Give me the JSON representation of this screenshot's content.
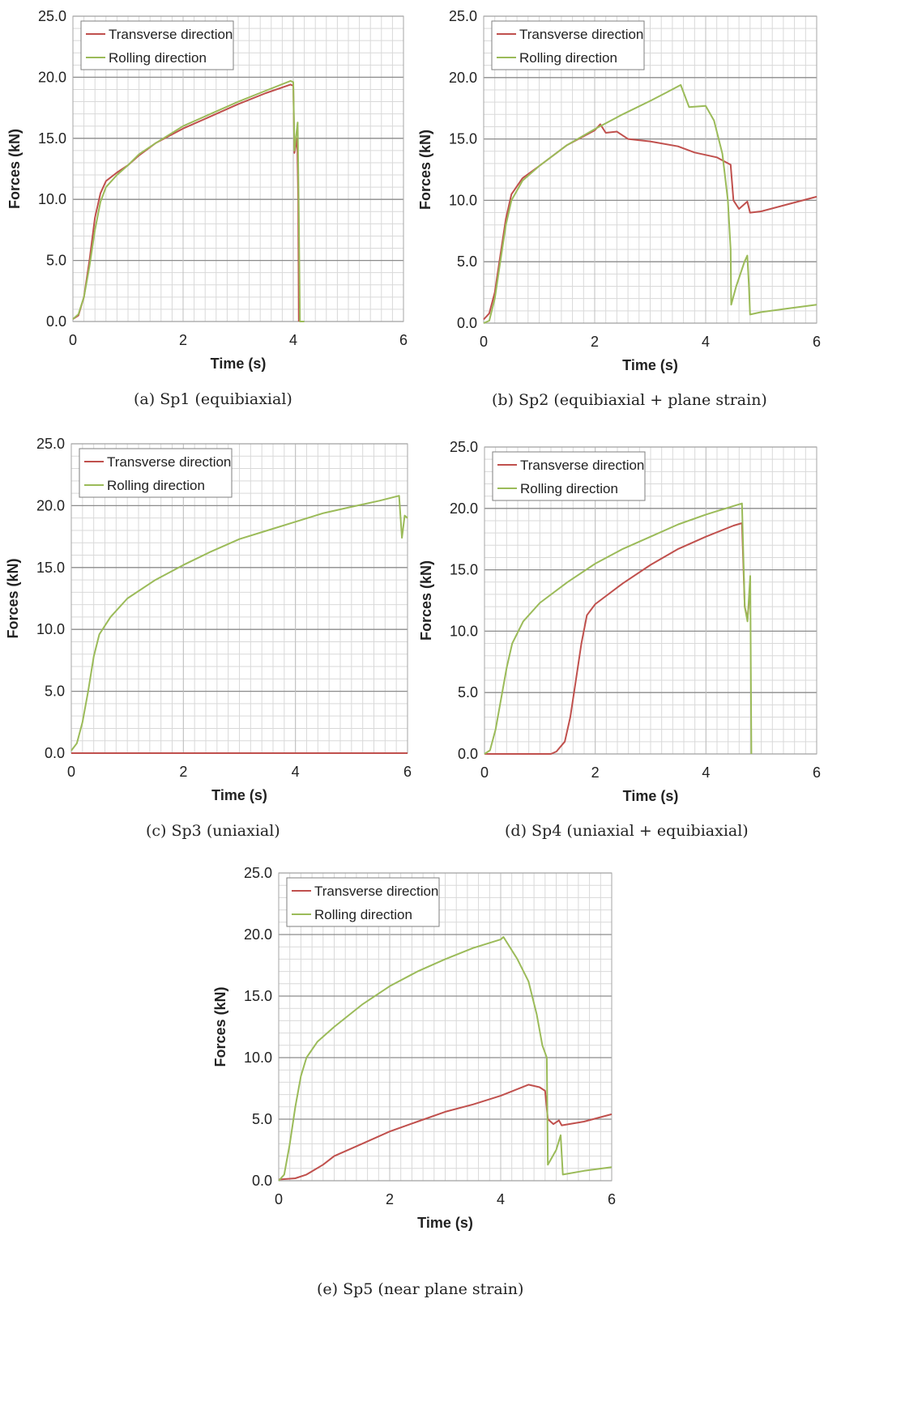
{
  "colors": {
    "transverse": "#c0504d",
    "rolling": "#9bbb59",
    "major_grid": "#8c8c8c",
    "minor_grid": "#d9d9d9"
  },
  "chart_data": [
    {
      "type": "line",
      "caption": "(a) Sp1 (equibiaxial)",
      "xlabel": "Time (s)",
      "ylabel": "Forces (kN)",
      "xlim": [
        0,
        6
      ],
      "ylim": [
        0,
        25
      ],
      "xticks": [
        "0",
        "2",
        "4",
        "6"
      ],
      "yticks": [
        "0.0",
        "5.0",
        "10.0",
        "15.0",
        "20.0",
        "25.0"
      ],
      "grid": true,
      "legend_position": "top-left",
      "series": [
        {
          "name": "Transverse direction",
          "color": "#c0504d",
          "points": [
            [
              0,
              0.2
            ],
            [
              0.1,
              0.5
            ],
            [
              0.2,
              2.0
            ],
            [
              0.3,
              5.0
            ],
            [
              0.4,
              8.5
            ],
            [
              0.5,
              10.5
            ],
            [
              0.6,
              11.5
            ],
            [
              0.8,
              12.2
            ],
            [
              1.0,
              12.8
            ],
            [
              1.2,
              13.6
            ],
            [
              1.5,
              14.6
            ],
            [
              2.0,
              15.8
            ],
            [
              2.5,
              16.8
            ],
            [
              3.0,
              17.8
            ],
            [
              3.5,
              18.7
            ],
            [
              3.95,
              19.4
            ],
            [
              4.0,
              19.3
            ],
            [
              4.02,
              13.8
            ],
            [
              4.07,
              15.0
            ],
            [
              4.09,
              10.0
            ],
            [
              4.1,
              0.0
            ]
          ]
        },
        {
          "name": "Rolling direction",
          "color": "#9bbb59",
          "points": [
            [
              0,
              0.2
            ],
            [
              0.1,
              0.6
            ],
            [
              0.2,
              2.0
            ],
            [
              0.3,
              4.5
            ],
            [
              0.4,
              7.5
            ],
            [
              0.5,
              9.8
            ],
            [
              0.6,
              11.0
            ],
            [
              0.8,
              12.0
            ],
            [
              1.0,
              12.8
            ],
            [
              1.2,
              13.7
            ],
            [
              1.5,
              14.6
            ],
            [
              2.0,
              16.0
            ],
            [
              2.5,
              17.0
            ],
            [
              3.0,
              18.0
            ],
            [
              3.5,
              18.9
            ],
            [
              3.95,
              19.7
            ],
            [
              4.0,
              19.6
            ],
            [
              4.02,
              14.0
            ],
            [
              4.08,
              16.3
            ],
            [
              4.1,
              9.0
            ],
            [
              4.12,
              0.0
            ],
            [
              4.2,
              0.0
            ]
          ]
        }
      ]
    },
    {
      "type": "line",
      "caption": "(b) Sp2 (equibiaxial + plane strain)",
      "xlabel": "Time (s)",
      "ylabel": "Forces (kN)",
      "xlim": [
        0,
        6
      ],
      "ylim": [
        0,
        25
      ],
      "xticks": [
        "0",
        "2",
        "4",
        "6"
      ],
      "yticks": [
        "0.0",
        "5.0",
        "10.0",
        "15.0",
        "20.0",
        "25.0"
      ],
      "grid": true,
      "legend_position": "top-left",
      "series": [
        {
          "name": "Transverse direction",
          "color": "#c0504d",
          "points": [
            [
              0,
              0.3
            ],
            [
              0.1,
              0.8
            ],
            [
              0.2,
              2.5
            ],
            [
              0.3,
              5.5
            ],
            [
              0.4,
              8.5
            ],
            [
              0.5,
              10.5
            ],
            [
              0.7,
              11.8
            ],
            [
              1.0,
              12.8
            ],
            [
              1.5,
              14.5
            ],
            [
              2.0,
              15.7
            ],
            [
              2.1,
              16.2
            ],
            [
              2.2,
              15.5
            ],
            [
              2.4,
              15.6
            ],
            [
              2.6,
              15.0
            ],
            [
              3.0,
              14.8
            ],
            [
              3.5,
              14.4
            ],
            [
              3.8,
              13.9
            ],
            [
              4.2,
              13.5
            ],
            [
              4.45,
              12.9
            ],
            [
              4.5,
              10.0
            ],
            [
              4.6,
              9.3
            ],
            [
              4.75,
              9.9
            ],
            [
              4.8,
              9.0
            ],
            [
              5.0,
              9.1
            ],
            [
              5.5,
              9.7
            ],
            [
              6.0,
              10.3
            ]
          ]
        },
        {
          "name": "Rolling direction",
          "color": "#9bbb59",
          "points": [
            [
              0,
              0.0
            ],
            [
              0.1,
              0.2
            ],
            [
              0.2,
              2.0
            ],
            [
              0.3,
              5.0
            ],
            [
              0.4,
              8.0
            ],
            [
              0.5,
              10.0
            ],
            [
              0.7,
              11.6
            ],
            [
              1.0,
              12.8
            ],
            [
              1.5,
              14.5
            ],
            [
              2.0,
              15.8
            ],
            [
              2.5,
              17.0
            ],
            [
              3.0,
              18.1
            ],
            [
              3.3,
              18.8
            ],
            [
              3.55,
              19.4
            ],
            [
              3.7,
              17.6
            ],
            [
              4.0,
              17.7
            ],
            [
              4.15,
              16.5
            ],
            [
              4.3,
              13.8
            ],
            [
              4.4,
              10.0
            ],
            [
              4.45,
              6.0
            ],
            [
              4.46,
              1.5
            ],
            [
              4.55,
              3.0
            ],
            [
              4.7,
              5.0
            ],
            [
              4.75,
              5.5
            ],
            [
              4.78,
              3.0
            ],
            [
              4.8,
              0.7
            ],
            [
              5.0,
              0.9
            ],
            [
              5.5,
              1.2
            ],
            [
              6.0,
              1.5
            ]
          ]
        }
      ]
    },
    {
      "type": "line",
      "caption": "(c) Sp3 (uniaxial)",
      "xlabel": "Time (s)",
      "ylabel": "Forces (kN)",
      "xlim": [
        0,
        6
      ],
      "ylim": [
        0,
        25
      ],
      "xticks": [
        "0",
        "2",
        "4",
        "6"
      ],
      "yticks": [
        "0.0",
        "5.0",
        "10.0",
        "15.0",
        "20.0",
        "25.0"
      ],
      "grid": true,
      "legend_position": "top-left",
      "series": [
        {
          "name": "Transverse direction",
          "color": "#c0504d",
          "points": [
            [
              0,
              0.0
            ],
            [
              6.0,
              0.0
            ]
          ]
        },
        {
          "name": "Rolling direction",
          "color": "#9bbb59",
          "points": [
            [
              0,
              0.2
            ],
            [
              0.1,
              0.8
            ],
            [
              0.2,
              2.5
            ],
            [
              0.3,
              5.0
            ],
            [
              0.4,
              7.8
            ],
            [
              0.5,
              9.6
            ],
            [
              0.7,
              11.0
            ],
            [
              1.0,
              12.5
            ],
            [
              1.5,
              14.0
            ],
            [
              2.0,
              15.2
            ],
            [
              2.5,
              16.3
            ],
            [
              3.0,
              17.3
            ],
            [
              3.5,
              18.0
            ],
            [
              4.0,
              18.7
            ],
            [
              4.5,
              19.4
            ],
            [
              5.0,
              19.9
            ],
            [
              5.5,
              20.4
            ],
            [
              5.85,
              20.8
            ],
            [
              5.9,
              17.4
            ],
            [
              5.95,
              19.2
            ],
            [
              6.0,
              19.0
            ]
          ]
        }
      ]
    },
    {
      "type": "line",
      "caption": "(d) Sp4 (uniaxial + equibiaxial)",
      "xlabel": "Time (s)",
      "ylabel": "Forces (kN)",
      "xlim": [
        0,
        6
      ],
      "ylim": [
        0,
        25
      ],
      "xticks": [
        "0",
        "2",
        "4",
        "6"
      ],
      "yticks": [
        "0.0",
        "5.0",
        "10.0",
        "15.0",
        "20.0",
        "25.0"
      ],
      "grid": true,
      "legend_position": "top-left",
      "series": [
        {
          "name": "Transverse direction",
          "color": "#c0504d",
          "points": [
            [
              0,
              0.0
            ],
            [
              1.2,
              0.0
            ],
            [
              1.3,
              0.2
            ],
            [
              1.45,
              1.0
            ],
            [
              1.55,
              3.0
            ],
            [
              1.65,
              6.0
            ],
            [
              1.75,
              9.0
            ],
            [
              1.85,
              11.3
            ],
            [
              2.0,
              12.2
            ],
            [
              2.5,
              13.9
            ],
            [
              3.0,
              15.4
            ],
            [
              3.5,
              16.7
            ],
            [
              4.0,
              17.7
            ],
            [
              4.5,
              18.6
            ],
            [
              4.65,
              18.8
            ],
            [
              4.7,
              12.0
            ],
            [
              4.75,
              11.0
            ],
            [
              4.8,
              13.5
            ]
          ]
        },
        {
          "name": "Rolling direction",
          "color": "#9bbb59",
          "points": [
            [
              0,
              0.0
            ],
            [
              0.1,
              0.3
            ],
            [
              0.2,
              2.0
            ],
            [
              0.3,
              4.5
            ],
            [
              0.4,
              7.0
            ],
            [
              0.5,
              9.0
            ],
            [
              0.7,
              10.8
            ],
            [
              1.0,
              12.3
            ],
            [
              1.5,
              14.0
            ],
            [
              2.0,
              15.5
            ],
            [
              2.5,
              16.7
            ],
            [
              3.0,
              17.7
            ],
            [
              3.5,
              18.7
            ],
            [
              4.0,
              19.5
            ],
            [
              4.5,
              20.2
            ],
            [
              4.65,
              20.4
            ],
            [
              4.7,
              12.0
            ],
            [
              4.75,
              10.8
            ],
            [
              4.8,
              14.5
            ],
            [
              4.82,
              0.0
            ]
          ]
        }
      ]
    },
    {
      "type": "line",
      "caption": "(e) Sp5 (near plane strain)",
      "xlabel": "Time (s)",
      "ylabel": "Forces (kN)",
      "xlim": [
        0,
        6
      ],
      "ylim": [
        0,
        25
      ],
      "xticks": [
        "0",
        "2",
        "4",
        "6"
      ],
      "yticks": [
        "0.0",
        "5.0",
        "10.0",
        "15.0",
        "20.0",
        "25.0"
      ],
      "grid": true,
      "legend_position": "top-left",
      "series": [
        {
          "name": "Transverse direction",
          "color": "#c0504d",
          "points": [
            [
              0,
              0.1
            ],
            [
              0.3,
              0.2
            ],
            [
              0.5,
              0.5
            ],
            [
              0.8,
              1.3
            ],
            [
              1.0,
              2.0
            ],
            [
              1.5,
              3.0
            ],
            [
              2.0,
              4.0
            ],
            [
              2.5,
              4.8
            ],
            [
              3.0,
              5.6
            ],
            [
              3.5,
              6.2
            ],
            [
              4.0,
              6.9
            ],
            [
              4.5,
              7.8
            ],
            [
              4.7,
              7.6
            ],
            [
              4.8,
              7.3
            ],
            [
              4.85,
              5.0
            ],
            [
              4.95,
              4.6
            ],
            [
              5.05,
              4.9
            ],
            [
              5.1,
              4.5
            ],
            [
              5.5,
              4.8
            ],
            [
              6.0,
              5.4
            ]
          ]
        },
        {
          "name": "Rolling direction",
          "color": "#9bbb59",
          "points": [
            [
              0,
              0.0
            ],
            [
              0.1,
              0.5
            ],
            [
              0.2,
              3.0
            ],
            [
              0.3,
              6.0
            ],
            [
              0.4,
              8.5
            ],
            [
              0.5,
              10.0
            ],
            [
              0.7,
              11.3
            ],
            [
              1.0,
              12.5
            ],
            [
              1.5,
              14.3
            ],
            [
              2.0,
              15.8
            ],
            [
              2.5,
              17.0
            ],
            [
              3.0,
              18.0
            ],
            [
              3.5,
              18.9
            ],
            [
              4.0,
              19.6
            ],
            [
              4.05,
              19.8
            ],
            [
              4.3,
              18.0
            ],
            [
              4.5,
              16.2
            ],
            [
              4.65,
              13.5
            ],
            [
              4.75,
              11.0
            ],
            [
              4.83,
              10.0
            ],
            [
              4.85,
              1.3
            ],
            [
              5.0,
              2.5
            ],
            [
              5.08,
              3.7
            ],
            [
              5.12,
              0.5
            ],
            [
              5.5,
              0.8
            ],
            [
              6.0,
              1.1
            ]
          ]
        }
      ]
    }
  ]
}
